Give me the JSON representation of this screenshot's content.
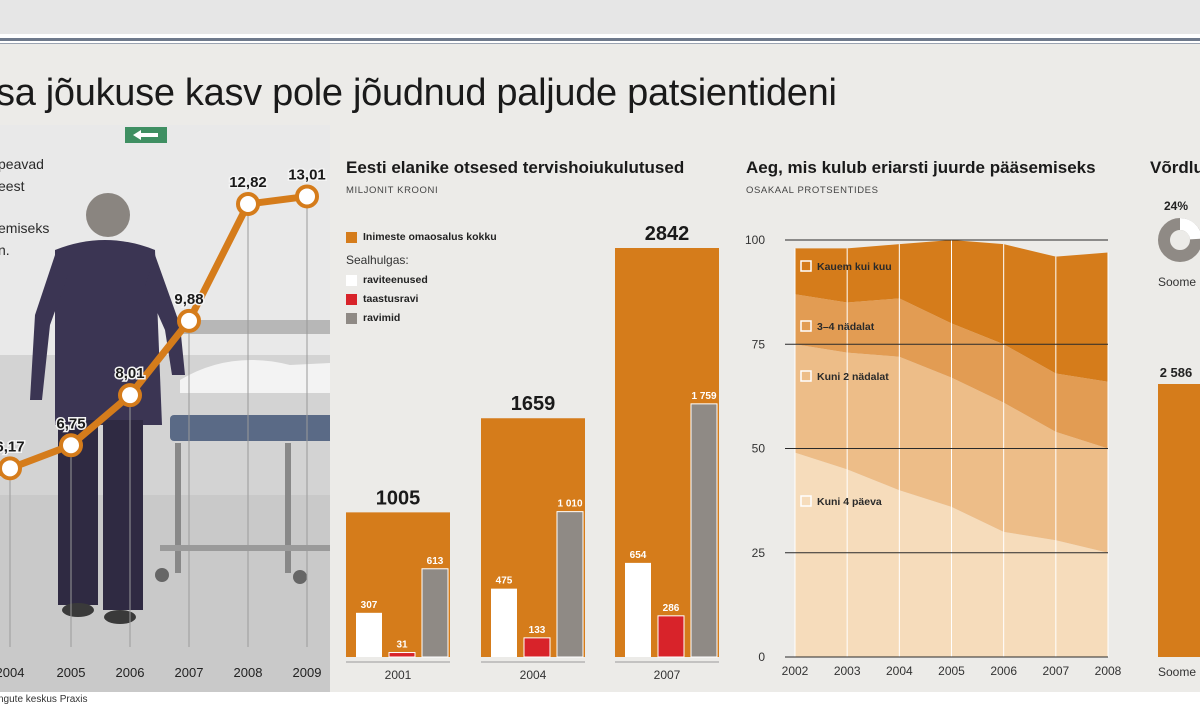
{
  "headline": "sa jõukuse kasv pole jõudnud paljude patsientideni",
  "source": "ngute keskus Praxis",
  "colors": {
    "orange": "#d57c1b",
    "white": "#ffffff",
    "red": "#d8232a",
    "gray": "#8f8a85",
    "panel": "#ecebe8"
  },
  "left_note": [
    "peavad",
    "eest",
    "emiseks",
    "n."
  ],
  "sign_icon": "exit-sign-icon",
  "chart_data": [
    {
      "type": "line",
      "title": "",
      "x": [
        "2004",
        "2005",
        "2006",
        "2007",
        "2008",
        "2009"
      ],
      "series": [
        {
          "values": [
            6.17,
            6.75,
            8.01,
            9.88,
            12.82,
            13.01
          ]
        }
      ],
      "labels": [
        "6,17",
        "6,75",
        "8,01",
        "9,88",
        "12,82",
        "13,01"
      ],
      "ylim": [
        5.7,
        13.6
      ],
      "grid": "vertical"
    },
    {
      "type": "bar",
      "title": "Eesti elanike otsesed tervishoiukulutused",
      "subtitle": "MILJONIT KROONI",
      "legend_total": "Inimeste omaosalus kokku",
      "legend_group_title": "Sealhulgas:",
      "categories": [
        "2001",
        "2004",
        "2007"
      ],
      "totals": [
        1005,
        1659,
        2842
      ],
      "total_labels": [
        "1005",
        "1659",
        "2842"
      ],
      "series": [
        {
          "name": "raviteenused",
          "values": [
            307,
            475,
            654
          ],
          "labels": [
            "307",
            "475",
            "654"
          ]
        },
        {
          "name": "taastusravi",
          "values": [
            31,
            133,
            286
          ],
          "labels": [
            "31",
            "133",
            "286"
          ]
        },
        {
          "name": "ravimid",
          "values": [
            613,
            1010,
            1759
          ],
          "labels": [
            "613",
            "1 010",
            "1 759"
          ]
        }
      ],
      "ylim": [
        0,
        2842
      ]
    },
    {
      "type": "area",
      "title": "Aeg, mis kulub eriarsti juurde pääsemiseks",
      "subtitle": "OSAKAAL PROTSENTIDES",
      "x": [
        "2002",
        "2003",
        "2004",
        "2005",
        "2006",
        "2007",
        "2008"
      ],
      "yticks": [
        "0",
        "25",
        "50",
        "75",
        "100"
      ],
      "ylim": [
        0,
        100
      ],
      "series": [
        {
          "name": "Kuni 4 päeva",
          "values": [
            49,
            45,
            40,
            36,
            30,
            28,
            25
          ]
        },
        {
          "name": "Kuni 2 nädalat",
          "values": [
            26,
            28,
            32,
            31,
            31,
            26,
            25
          ]
        },
        {
          "name": "3–4 nädalat",
          "values": [
            12,
            12,
            14,
            13,
            14,
            14,
            16
          ]
        },
        {
          "name": "Kauem kui kuu",
          "values": [
            11,
            13,
            13,
            20,
            24,
            28,
            31
          ]
        }
      ],
      "grid": "horizontal"
    },
    {
      "type": "bar",
      "title": "Võrdlu",
      "pie_label": "24%",
      "pie_value": 24,
      "pie_category": "Soome",
      "bar_label": "2 586",
      "bar_category": "Soome"
    }
  ]
}
